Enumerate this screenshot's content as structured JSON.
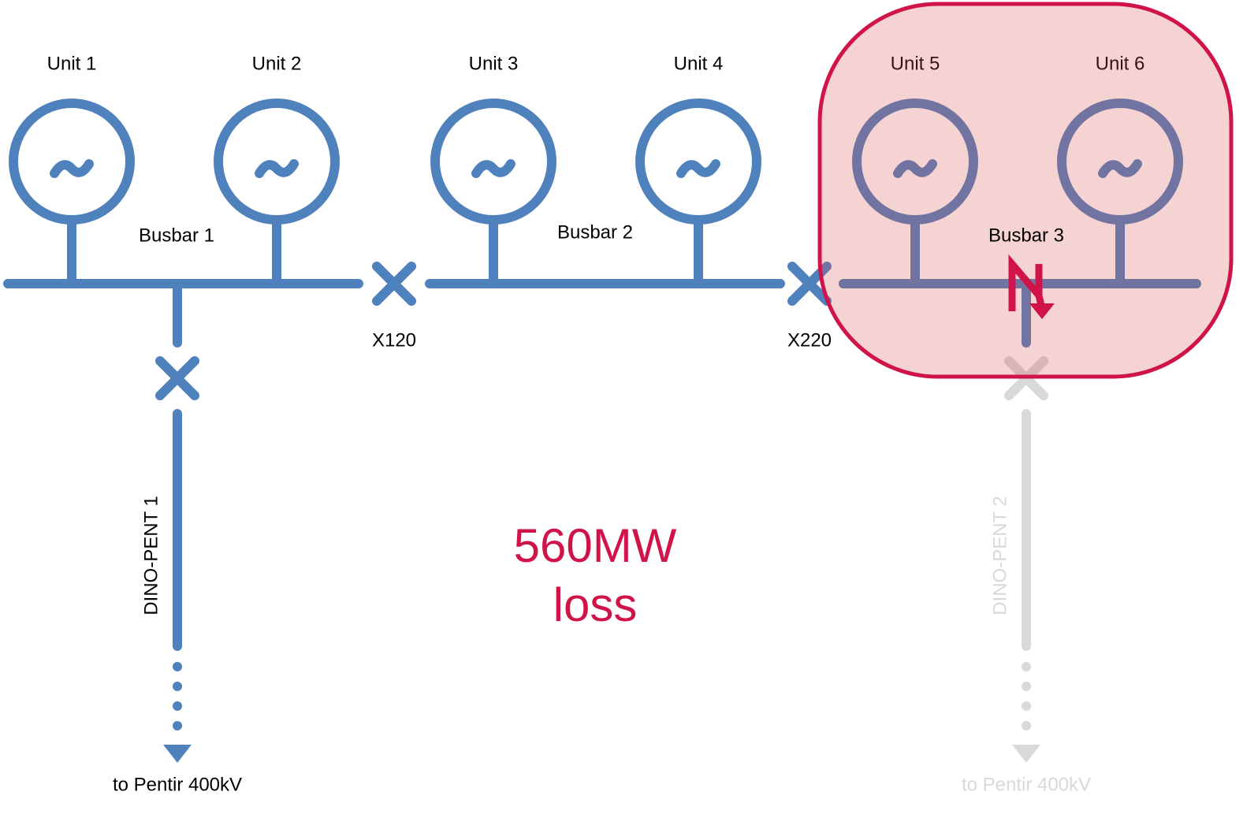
{
  "units": [
    "Unit 1",
    "Unit 2",
    "Unit 3",
    "Unit 4",
    "Unit 5",
    "Unit 6"
  ],
  "busbars": [
    "Busbar 1",
    "Busbar 2",
    "Busbar 3"
  ],
  "breakers": [
    "X120",
    "X220"
  ],
  "feeders": [
    {
      "label": "DINO-PENT 1",
      "destination": "to Pentir 400kV"
    },
    {
      "label": "DINO-PENT 2",
      "destination": "to Pentir 400kV"
    }
  ],
  "loss": {
    "amount": "560MW",
    "text": "loss"
  }
}
